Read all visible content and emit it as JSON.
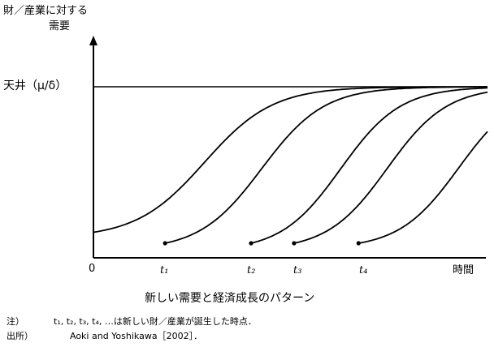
{
  "chart_data": {
    "type": "line",
    "title": "新しい需要と経済成長のパターン",
    "ylabel_line1": "財／産業に対する",
    "ylabel_line2": "需要",
    "xlabel": "時間",
    "ceiling_label": "天井（μ/δ）",
    "ceiling_value": 1.0,
    "origin_label": "0",
    "x_ticks": [
      {
        "label": "t₁",
        "x": 1.0
      },
      {
        "label": "t₂",
        "x": 2.2
      },
      {
        "label": "t₃",
        "x": 2.8
      },
      {
        "label": "t₄",
        "x": 3.7
      }
    ],
    "xlim": [
      0,
      5.5
    ],
    "ylim": [
      0,
      1.2
    ],
    "grid": false,
    "series": [
      {
        "start": 0.0,
        "start_level": 0.07,
        "k": 2.1,
        "mid": 1.55,
        "marker": false
      },
      {
        "start": 1.0,
        "start_level": 0.0,
        "k": 2.3,
        "mid": 2.35,
        "marker": true
      },
      {
        "start": 2.2,
        "start_level": 0.0,
        "k": 2.4,
        "mid": 3.45,
        "marker": true
      },
      {
        "start": 2.8,
        "start_level": 0.0,
        "k": 2.4,
        "mid": 4.1,
        "marker": true
      },
      {
        "start": 3.7,
        "start_level": 0.0,
        "k": 2.4,
        "mid": 5.1,
        "marker": true
      }
    ]
  },
  "notes": {
    "note_prefix": "注）",
    "note_text": "t₁, t₂, t₃, t₄, …は新しい財／産業が誕生した時点．",
    "source_prefix": "出所）",
    "source_text": "Aoki and Yoshikawa［2002］．"
  }
}
